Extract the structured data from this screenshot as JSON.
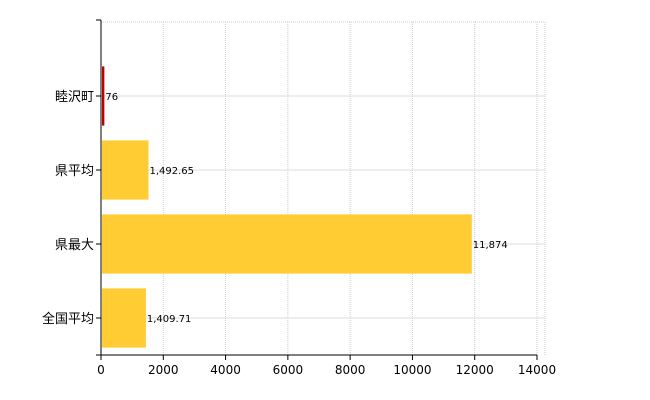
{
  "chart_data": {
    "type": "bar",
    "orientation": "horizontal",
    "categories": [
      "睦沢町",
      "県平均",
      "県最大",
      "全国平均"
    ],
    "values": [
      76,
      1492.65,
      11874,
      1409.71
    ],
    "value_labels": [
      "76",
      "1,492.65",
      "11,874",
      "1,409.71"
    ],
    "bar_colors": [
      "#c00000",
      "#ffcc33",
      "#ffcc33",
      "#ffcc33"
    ],
    "xlim": [
      0,
      14000
    ],
    "xticks": [
      0,
      2000,
      4000,
      6000,
      8000,
      10000,
      12000,
      14000
    ],
    "grid": true,
    "legend": "none"
  }
}
